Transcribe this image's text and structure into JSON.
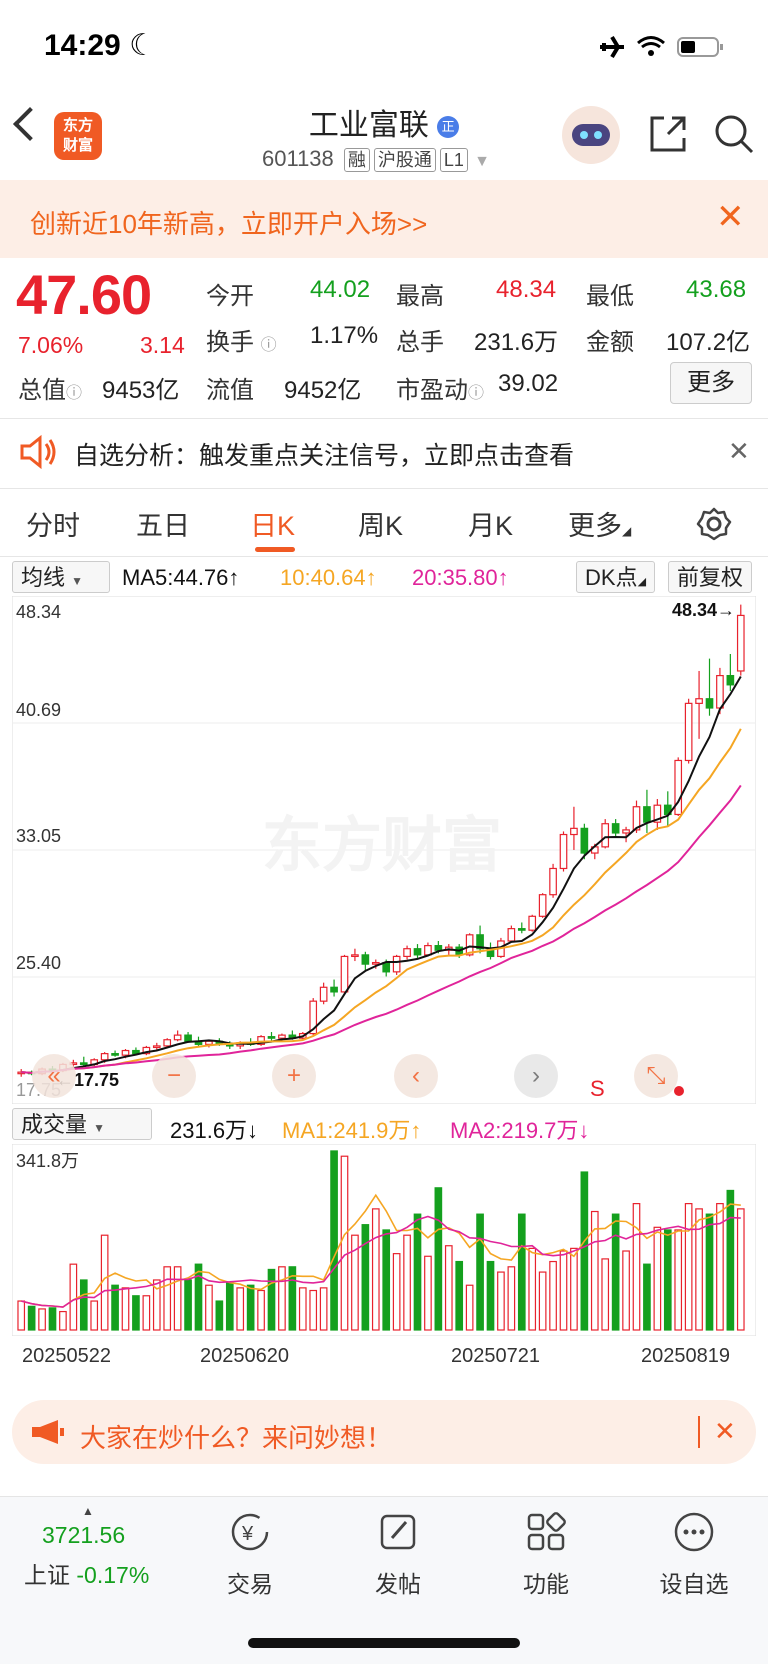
{
  "status_bar": {
    "time": "14:29"
  },
  "header": {
    "logo_text": "东方财富",
    "stock_name": "工业富联",
    "stock_code": "601138",
    "tags": [
      "融",
      "沪股通",
      "L1"
    ]
  },
  "top_banner": {
    "text": "创新近10年新高，立即开户入场>>"
  },
  "quote": {
    "price": "47.60",
    "change_pct": "7.06%",
    "change": "3.14",
    "fields": [
      {
        "label": "今开",
        "value": "44.02",
        "color": "#14a01e"
      },
      {
        "label": "最高",
        "value": "48.34",
        "color": "#e8222d"
      },
      {
        "label": "最低",
        "value": "43.68",
        "color": "#14a01e"
      },
      {
        "label": "换手",
        "value": "1.17%",
        "color": "#333333"
      },
      {
        "label": "总手",
        "value": "231.6万",
        "color": "#333333"
      },
      {
        "label": "金额",
        "value": "107.2亿",
        "color": "#333333"
      },
      {
        "label": "总值",
        "value": "9453亿",
        "color": "#333333"
      },
      {
        "label": "流值",
        "value": "9452亿",
        "color": "#333333"
      },
      {
        "label": "市盈动",
        "value": "39.02",
        "color": "#333333"
      }
    ],
    "more_label": "更多"
  },
  "alert": {
    "text": "自选分析：触发重点关注信号，立即点击查看"
  },
  "tabs": [
    "分时",
    "五日",
    "日K",
    "周K",
    "月K",
    "更多"
  ],
  "active_tab": "日K",
  "chart_toolbar": {
    "indicator_select": "均线",
    "ma5": "MA5:44.76↑",
    "ma10": "10:40.64↑",
    "ma20": "20:35.80↑",
    "dk_label": "DK点",
    "adjust_label": "前复权",
    "colors": {
      "ma5": "#111111",
      "ma10": "#f5a623",
      "ma20": "#e0249a",
      "up": "#e8222d",
      "down": "#14a01e"
    }
  },
  "price_axis": [
    "48.34",
    "40.69",
    "33.05",
    "25.40",
    "17.75"
  ],
  "annotations": {
    "high_marker": "48.34→",
    "low_marker": "←17.75",
    "signal": "S"
  },
  "volume_toolbar": {
    "select": "成交量",
    "value": "231.6万↓",
    "ma1": "MA1:241.9万↑",
    "ma2": "MA2:219.7万↓",
    "axis_top": "341.8万"
  },
  "dates": [
    "20250522",
    "20250620",
    "20250721",
    "20250819"
  ],
  "chart_data": {
    "type": "candlestick",
    "ylim": [
      17.75,
      48.34
    ],
    "candles": [
      [
        17.9,
        18.2,
        17.7,
        18.0
      ],
      [
        18.0,
        18.1,
        17.8,
        17.9
      ],
      [
        17.9,
        18.3,
        17.8,
        18.2
      ],
      [
        18.2,
        18.4,
        18.0,
        18.1
      ],
      [
        18.1,
        18.6,
        18.0,
        18.5
      ],
      [
        18.5,
        18.8,
        18.3,
        18.6
      ],
      [
        18.6,
        19.0,
        18.4,
        18.5
      ],
      [
        18.5,
        18.9,
        18.4,
        18.8
      ],
      [
        18.8,
        19.3,
        18.6,
        19.2
      ],
      [
        19.2,
        19.4,
        19.0,
        19.1
      ],
      [
        19.1,
        19.5,
        18.9,
        19.4
      ],
      [
        19.4,
        19.6,
        19.1,
        19.2
      ],
      [
        19.2,
        19.7,
        19.1,
        19.6
      ],
      [
        19.6,
        19.9,
        19.4,
        19.7
      ],
      [
        19.7,
        20.2,
        19.6,
        20.1
      ],
      [
        20.1,
        20.7,
        20.0,
        20.4
      ],
      [
        20.4,
        20.6,
        19.9,
        20.0
      ],
      [
        20.0,
        20.3,
        19.7,
        19.8
      ],
      [
        19.8,
        20.1,
        19.6,
        20.0
      ],
      [
        20.0,
        20.2,
        19.7,
        19.8
      ],
      [
        19.8,
        20.0,
        19.5,
        19.7
      ],
      [
        19.7,
        20.0,
        19.5,
        19.9
      ],
      [
        19.9,
        20.2,
        19.7,
        19.8
      ],
      [
        19.8,
        20.4,
        19.7,
        20.3
      ],
      [
        20.3,
        20.6,
        20.0,
        20.2
      ],
      [
        20.2,
        20.5,
        20.0,
        20.4
      ],
      [
        20.4,
        20.7,
        20.1,
        20.2
      ],
      [
        20.2,
        20.6,
        20.1,
        20.5
      ],
      [
        20.5,
        22.8,
        20.4,
        22.6
      ],
      [
        22.6,
        23.8,
        22.4,
        23.5
      ],
      [
        23.5,
        24.0,
        22.9,
        23.2
      ],
      [
        23.2,
        25.6,
        23.0,
        25.5
      ],
      [
        25.5,
        26.0,
        25.2,
        25.6
      ],
      [
        25.6,
        25.8,
        24.6,
        25.0
      ],
      [
        25.0,
        25.3,
        24.7,
        25.1
      ],
      [
        25.1,
        25.3,
        24.2,
        24.5
      ],
      [
        24.5,
        25.6,
        24.3,
        25.5
      ],
      [
        25.5,
        26.2,
        25.3,
        26.0
      ],
      [
        26.0,
        26.3,
        25.4,
        25.6
      ],
      [
        25.6,
        26.4,
        25.5,
        26.2
      ],
      [
        26.2,
        26.5,
        25.7,
        25.9
      ],
      [
        25.9,
        26.3,
        25.6,
        26.1
      ],
      [
        26.1,
        26.3,
        25.4,
        25.6
      ],
      [
        25.6,
        27.0,
        25.5,
        26.9
      ],
      [
        26.9,
        27.5,
        25.7,
        26.0
      ],
      [
        26.0,
        26.4,
        25.3,
        25.5
      ],
      [
        25.5,
        26.7,
        25.4,
        26.5
      ],
      [
        26.5,
        27.5,
        26.4,
        27.3
      ],
      [
        27.3,
        27.7,
        27.0,
        27.2
      ],
      [
        27.2,
        28.2,
        27.1,
        28.1
      ],
      [
        28.1,
        29.6,
        28.0,
        29.5
      ],
      [
        29.5,
        31.5,
        29.3,
        31.2
      ],
      [
        31.2,
        33.6,
        31.0,
        33.4
      ],
      [
        33.4,
        35.2,
        32.4,
        33.8
      ],
      [
        33.8,
        34.1,
        31.8,
        32.2
      ],
      [
        32.2,
        32.8,
        31.8,
        32.6
      ],
      [
        32.6,
        34.4,
        32.5,
        34.1
      ],
      [
        34.1,
        34.4,
        33.2,
        33.5
      ],
      [
        33.5,
        33.9,
        32.9,
        33.7
      ],
      [
        33.7,
        35.6,
        33.5,
        35.2
      ],
      [
        35.2,
        36.3,
        33.5,
        34.2
      ],
      [
        34.2,
        35.7,
        33.7,
        35.3
      ],
      [
        35.3,
        36.2,
        33.9,
        34.7
      ],
      [
        34.7,
        38.4,
        34.6,
        38.2
      ],
      [
        38.2,
        42.2,
        38.0,
        41.9
      ],
      [
        41.9,
        44.0,
        39.6,
        42.2
      ],
      [
        42.2,
        44.8,
        41.1,
        41.6
      ],
      [
        41.6,
        44.2,
        41.2,
        43.7
      ],
      [
        43.7,
        45.1,
        42.7,
        43.1
      ],
      [
        44.0,
        48.3,
        43.7,
        47.6
      ]
    ],
    "volume_ylim": [
      0,
      341.8
    ],
    "volume": [
      55,
      45,
      40,
      42,
      35,
      125,
      95,
      55,
      180,
      85,
      80,
      65,
      65,
      95,
      120,
      120,
      95,
      125,
      85,
      55,
      90,
      80,
      85,
      75,
      115,
      120,
      120,
      80,
      75,
      80,
      340,
      330,
      180,
      200,
      230,
      190,
      145,
      180,
      220,
      140,
      270,
      160,
      130,
      85,
      220,
      130,
      110,
      120,
      220,
      155,
      110,
      130,
      150,
      155,
      300,
      225,
      135,
      220,
      150,
      240,
      125,
      195,
      190,
      190,
      240,
      230,
      220,
      240,
      265,
      230
    ]
  },
  "banner2": {
    "text": "大家在炒什么？来问妙想！"
  },
  "bottom_bar": {
    "index_value": "3721.56",
    "index_name": "上证",
    "index_change": "-0.17%",
    "items": [
      {
        "label": "交易",
        "icon": "trade-icon"
      },
      {
        "label": "发帖",
        "icon": "post-icon"
      },
      {
        "label": "功能",
        "icon": "apps-icon"
      },
      {
        "label": "设自选",
        "icon": "more-dots-icon"
      }
    ]
  }
}
